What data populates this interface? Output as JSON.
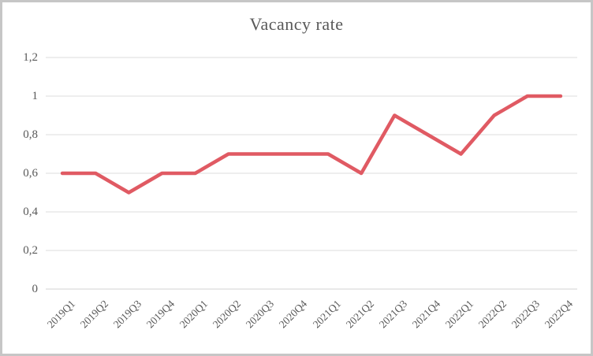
{
  "chart_data": {
    "type": "line",
    "title": "Vacancy rate",
    "categories": [
      "2019Q1",
      "2019Q2",
      "2019Q3",
      "2019Q4",
      "2020Q1",
      "2020Q2",
      "2020Q3",
      "2020Q4",
      "2021Q1",
      "2021Q2",
      "2021Q3",
      "2021Q4",
      "2022Q1",
      "2022Q2",
      "2022Q3",
      "2022Q4"
    ],
    "series": [
      {
        "name": "Vacancy rate",
        "values": [
          0.6,
          0.6,
          0.5,
          0.6,
          0.6,
          0.7,
          0.7,
          0.7,
          0.7,
          0.6,
          0.9,
          0.8,
          0.7,
          0.9,
          1.0,
          1.0
        ],
        "color": "#e05a63"
      }
    ],
    "xlabel": "",
    "ylabel": "",
    "ylim": [
      0,
      1.2
    ],
    "ytick_values": [
      0,
      0.2,
      0.4,
      0.6,
      0.8,
      1.0,
      1.2
    ],
    "ytick_labels": [
      "0",
      "0,2",
      "0,4",
      "0,6",
      "0,8",
      "1",
      "1,2"
    ],
    "decimal_separator": ",",
    "grid": "horizontal",
    "legend_position": "none",
    "colors": {
      "gridline": "#dcdcdc",
      "axis_line": "#d3d3d3",
      "text": "#595959",
      "frame_border": "#c6c6c6",
      "background": "#ffffff"
    }
  }
}
